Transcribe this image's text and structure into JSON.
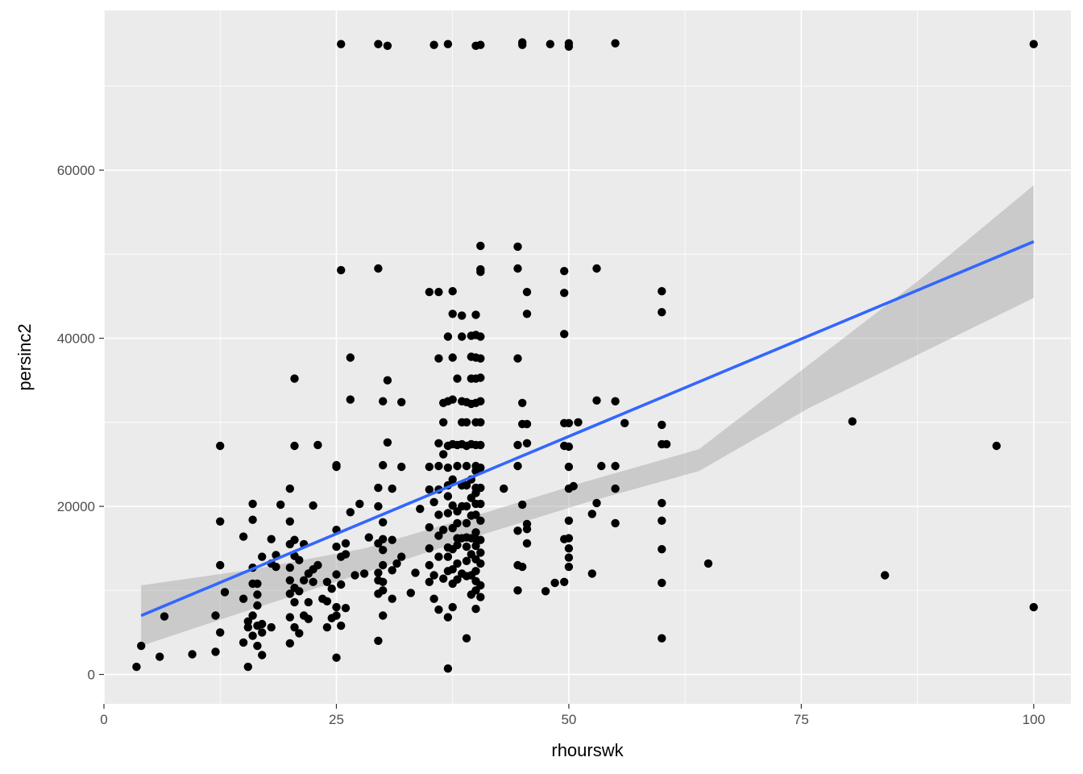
{
  "chart_data": {
    "type": "scatter",
    "xlabel": "rhourswk",
    "ylabel": "persinc2",
    "xlim": [
      0,
      104
    ],
    "ylim": [
      -3500,
      79000
    ],
    "x_ticks": [
      0,
      25,
      50,
      75,
      100
    ],
    "y_ticks": [
      0,
      20000,
      40000,
      60000
    ],
    "grid": true,
    "legend": "none",
    "colors": {
      "panel_background": "#ebebeb",
      "grid": "#ffffff",
      "points": "#000000",
      "fit_line": "#3366ff",
      "confidence_band": "#999999"
    },
    "points": [
      [
        3.5,
        900
      ],
      [
        4,
        3400
      ],
      [
        6,
        2100
      ],
      [
        6.5,
        6900
      ],
      [
        9.5,
        2400
      ],
      [
        12,
        2700
      ],
      [
        12,
        7000
      ],
      [
        12.5,
        5000
      ],
      [
        12.5,
        13000
      ],
      [
        12.5,
        18200
      ],
      [
        12.5,
        27200
      ],
      [
        13,
        9800
      ],
      [
        15,
        3800
      ],
      [
        15,
        9000
      ],
      [
        15,
        16400
      ],
      [
        15.5,
        900
      ],
      [
        15.5,
        5600
      ],
      [
        15.5,
        6300
      ],
      [
        16,
        4600
      ],
      [
        16,
        7000
      ],
      [
        16,
        10800
      ],
      [
        16,
        12700
      ],
      [
        16,
        18400
      ],
      [
        16,
        20300
      ],
      [
        16.5,
        3400
      ],
      [
        16.5,
        5800
      ],
      [
        16.5,
        8200
      ],
      [
        16.5,
        9500
      ],
      [
        16.5,
        10800
      ],
      [
        17,
        2300
      ],
      [
        17,
        5000
      ],
      [
        17,
        6000
      ],
      [
        17,
        14000
      ],
      [
        18,
        5600
      ],
      [
        18,
        13200
      ],
      [
        18,
        16100
      ],
      [
        18.5,
        12800
      ],
      [
        18.5,
        14200
      ],
      [
        19,
        20200
      ],
      [
        20,
        3700
      ],
      [
        20,
        6800
      ],
      [
        20,
        9600
      ],
      [
        20,
        11200
      ],
      [
        20,
        12700
      ],
      [
        20,
        15500
      ],
      [
        20,
        18200
      ],
      [
        20,
        22100
      ],
      [
        20.5,
        5600
      ],
      [
        20.5,
        8600
      ],
      [
        20.5,
        10300
      ],
      [
        20.5,
        14100
      ],
      [
        20.5,
        16000
      ],
      [
        20.5,
        27200
      ],
      [
        20.5,
        35200
      ],
      [
        21,
        4900
      ],
      [
        21,
        9900
      ],
      [
        21,
        13600
      ],
      [
        21.5,
        7000
      ],
      [
        21.5,
        11200
      ],
      [
        21.5,
        15500
      ],
      [
        22,
        6600
      ],
      [
        22,
        8600
      ],
      [
        22,
        12000
      ],
      [
        22.5,
        11000
      ],
      [
        22.5,
        12500
      ],
      [
        22.5,
        20100
      ],
      [
        23,
        13000
      ],
      [
        23,
        27300
      ],
      [
        23.5,
        9000
      ],
      [
        24,
        8700
      ],
      [
        24,
        11000
      ],
      [
        24,
        5600
      ],
      [
        24.5,
        6700
      ],
      [
        24.5,
        10200
      ],
      [
        25,
        7000
      ],
      [
        25,
        8000
      ],
      [
        25,
        11900
      ],
      [
        25,
        15200
      ],
      [
        25,
        17200
      ],
      [
        25,
        2000
      ],
      [
        25,
        24700
      ],
      [
        25,
        24900
      ],
      [
        25.5,
        5800
      ],
      [
        25.5,
        10700
      ],
      [
        25.5,
        14000
      ],
      [
        25.5,
        75000
      ],
      [
        25.5,
        48100
      ],
      [
        26,
        7900
      ],
      [
        26,
        14300
      ],
      [
        26,
        15600
      ],
      [
        26.5,
        19300
      ],
      [
        26.5,
        32700
      ],
      [
        26.5,
        37700
      ],
      [
        27,
        11800
      ],
      [
        27.5,
        20300
      ],
      [
        28,
        12000
      ],
      [
        28.5,
        16300
      ],
      [
        29.5,
        9600
      ],
      [
        29.5,
        11200
      ],
      [
        29.5,
        12100
      ],
      [
        29.5,
        15600
      ],
      [
        29.5,
        20000
      ],
      [
        29.5,
        22200
      ],
      [
        29.5,
        4000
      ],
      [
        29.5,
        48300
      ],
      [
        29.5,
        75000
      ],
      [
        30,
        7000
      ],
      [
        30,
        10000
      ],
      [
        30,
        11000
      ],
      [
        30,
        13000
      ],
      [
        30,
        14800
      ],
      [
        30,
        16100
      ],
      [
        30,
        18100
      ],
      [
        30,
        24900
      ],
      [
        30,
        32500
      ],
      [
        30.5,
        27600
      ],
      [
        30.5,
        35000
      ],
      [
        30.5,
        74800
      ],
      [
        31,
        9000
      ],
      [
        31,
        12400
      ],
      [
        31,
        16000
      ],
      [
        31,
        22100
      ],
      [
        31.5,
        13200
      ],
      [
        32,
        32400
      ],
      [
        32,
        24700
      ],
      [
        32,
        14000
      ],
      [
        33,
        9700
      ],
      [
        33.5,
        12100
      ],
      [
        34,
        19700
      ],
      [
        35,
        11000
      ],
      [
        35,
        13000
      ],
      [
        35,
        15000
      ],
      [
        35,
        17500
      ],
      [
        35,
        22000
      ],
      [
        35,
        24700
      ],
      [
        35,
        45500
      ],
      [
        35.5,
        9000
      ],
      [
        35.5,
        11800
      ],
      [
        35.5,
        20500
      ],
      [
        35.5,
        74900
      ],
      [
        36,
        7700
      ],
      [
        36,
        14000
      ],
      [
        36,
        16500
      ],
      [
        36,
        19000
      ],
      [
        36,
        22000
      ],
      [
        36,
        24800
      ],
      [
        36,
        27500
      ],
      [
        36,
        37600
      ],
      [
        36,
        45500
      ],
      [
        36.5,
        11400
      ],
      [
        36.5,
        17200
      ],
      [
        36.5,
        26200
      ],
      [
        36.5,
        30000
      ],
      [
        36.5,
        32300
      ],
      [
        37,
        6800
      ],
      [
        37,
        700
      ],
      [
        37,
        12300
      ],
      [
        37,
        14000
      ],
      [
        37,
        15100
      ],
      [
        37,
        19200
      ],
      [
        37,
        21200
      ],
      [
        37,
        22500
      ],
      [
        37,
        24600
      ],
      [
        37,
        27200
      ],
      [
        37,
        32500
      ],
      [
        37,
        40200
      ],
      [
        37,
        75000
      ],
      [
        37.5,
        8000
      ],
      [
        37.5,
        10800
      ],
      [
        37.5,
        12500
      ],
      [
        37.5,
        14900
      ],
      [
        37.5,
        17400
      ],
      [
        37.5,
        20100
      ],
      [
        37.5,
        23200
      ],
      [
        37.5,
        27400
      ],
      [
        37.5,
        32700
      ],
      [
        37.5,
        37700
      ],
      [
        37.5,
        42900
      ],
      [
        37.5,
        45600
      ],
      [
        38,
        11300
      ],
      [
        38,
        13200
      ],
      [
        38,
        15400
      ],
      [
        38,
        16200
      ],
      [
        38,
        18000
      ],
      [
        38,
        19400
      ],
      [
        38,
        24800
      ],
      [
        38,
        27300
      ],
      [
        38,
        35200
      ],
      [
        38.5,
        12000
      ],
      [
        38.5,
        16200
      ],
      [
        38.5,
        20000
      ],
      [
        38.5,
        22500
      ],
      [
        38.5,
        27400
      ],
      [
        38.5,
        30000
      ],
      [
        38.5,
        32500
      ],
      [
        38.5,
        40200
      ],
      [
        38.5,
        42700
      ],
      [
        39,
        4300
      ],
      [
        39,
        11700
      ],
      [
        39,
        13500
      ],
      [
        39,
        15200
      ],
      [
        39,
        16300
      ],
      [
        39,
        18000
      ],
      [
        39,
        20000
      ],
      [
        39,
        22500
      ],
      [
        39,
        24800
      ],
      [
        39,
        27200
      ],
      [
        39,
        30000
      ],
      [
        39,
        32400
      ],
      [
        39.5,
        9500
      ],
      [
        39.5,
        11800
      ],
      [
        39.5,
        14300
      ],
      [
        39.5,
        16200
      ],
      [
        39.5,
        18900
      ],
      [
        39.5,
        21000
      ],
      [
        39.5,
        23200
      ],
      [
        39.5,
        27400
      ],
      [
        39.5,
        32200
      ],
      [
        39.5,
        35200
      ],
      [
        39.5,
        37800
      ],
      [
        39.5,
        40300
      ],
      [
        40,
        7800
      ],
      [
        40,
        10000
      ],
      [
        40,
        11100
      ],
      [
        40,
        12300
      ],
      [
        40,
        13700
      ],
      [
        40,
        15300
      ],
      [
        40,
        16100
      ],
      [
        40,
        16900
      ],
      [
        40,
        19000
      ],
      [
        40,
        20300
      ],
      [
        40,
        21600
      ],
      [
        40,
        22200
      ],
      [
        40,
        24200
      ],
      [
        40,
        24800
      ],
      [
        40,
        27300
      ],
      [
        40,
        30000
      ],
      [
        40,
        32300
      ],
      [
        40,
        35200
      ],
      [
        40,
        37700
      ],
      [
        40,
        40400
      ],
      [
        40,
        42800
      ],
      [
        40,
        74800
      ],
      [
        40.5,
        9200
      ],
      [
        40.5,
        10600
      ],
      [
        40.5,
        13200
      ],
      [
        40.5,
        14500
      ],
      [
        40.5,
        16000
      ],
      [
        40.5,
        18300
      ],
      [
        40.5,
        20300
      ],
      [
        40.5,
        22200
      ],
      [
        40.5,
        24600
      ],
      [
        40.5,
        27300
      ],
      [
        40.5,
        30000
      ],
      [
        40.5,
        32500
      ],
      [
        40.5,
        35300
      ],
      [
        40.5,
        37600
      ],
      [
        40.5,
        40200
      ],
      [
        40.5,
        47900
      ],
      [
        40.5,
        48200
      ],
      [
        40.5,
        51000
      ],
      [
        40.5,
        74900
      ],
      [
        43,
        22100
      ],
      [
        44.5,
        10000
      ],
      [
        44.5,
        13000
      ],
      [
        44.5,
        17100
      ],
      [
        44.5,
        24800
      ],
      [
        44.5,
        27300
      ],
      [
        44.5,
        37600
      ],
      [
        44.5,
        48300
      ],
      [
        44.5,
        50900
      ],
      [
        45,
        12800
      ],
      [
        45,
        29800
      ],
      [
        45,
        32300
      ],
      [
        45,
        74900
      ],
      [
        45,
        75200
      ],
      [
        45,
        20200
      ],
      [
        45.5,
        15600
      ],
      [
        45.5,
        17300
      ],
      [
        45.5,
        29800
      ],
      [
        45.5,
        42900
      ],
      [
        45.5,
        45500
      ],
      [
        45.5,
        27500
      ],
      [
        45.5,
        17900
      ],
      [
        48,
        75000
      ],
      [
        47.5,
        9900
      ],
      [
        48.5,
        10900
      ],
      [
        49.5,
        11000
      ],
      [
        49.5,
        16100
      ],
      [
        49.5,
        27200
      ],
      [
        49.5,
        29900
      ],
      [
        49.5,
        40500
      ],
      [
        49.5,
        45400
      ],
      [
        49.5,
        48000
      ],
      [
        50,
        12800
      ],
      [
        50,
        13900
      ],
      [
        50,
        15000
      ],
      [
        50,
        16200
      ],
      [
        50,
        18300
      ],
      [
        50,
        22100
      ],
      [
        50,
        24700
      ],
      [
        50,
        27100
      ],
      [
        50,
        29900
      ],
      [
        50,
        74700
      ],
      [
        50,
        75100
      ],
      [
        50.5,
        22400
      ],
      [
        51,
        30000
      ],
      [
        52.5,
        19100
      ],
      [
        52.5,
        12000
      ],
      [
        53,
        20400
      ],
      [
        53,
        32600
      ],
      [
        53,
        48300
      ],
      [
        53.5,
        24800
      ],
      [
        55,
        18000
      ],
      [
        55,
        22100
      ],
      [
        55,
        32500
      ],
      [
        55,
        24800
      ],
      [
        55,
        75100
      ],
      [
        56,
        29900
      ],
      [
        60,
        4300
      ],
      [
        60,
        10900
      ],
      [
        60,
        14900
      ],
      [
        60,
        18300
      ],
      [
        60,
        20400
      ],
      [
        60,
        27400
      ],
      [
        60,
        29700
      ],
      [
        60,
        43100
      ],
      [
        60,
        45600
      ],
      [
        60.5,
        27400
      ],
      [
        65,
        13200
      ],
      [
        80.5,
        30100
      ],
      [
        84,
        11800
      ],
      [
        96,
        27200
      ],
      [
        100,
        8000
      ],
      [
        100,
        75000
      ]
    ],
    "fit": {
      "x": [
        4,
        100
      ],
      "y": [
        7000,
        51500
      ]
    },
    "confidence_band": {
      "x": [
        4,
        16,
        28,
        40,
        52,
        64,
        76,
        88,
        100
      ],
      "lower": [
        3400,
        7800,
        12100,
        16400,
        20500,
        24200,
        31800,
        38300,
        44800
      ],
      "upper": [
        10600,
        12500,
        15000,
        18900,
        23000,
        26800,
        37000,
        47200,
        58200
      ]
    }
  }
}
